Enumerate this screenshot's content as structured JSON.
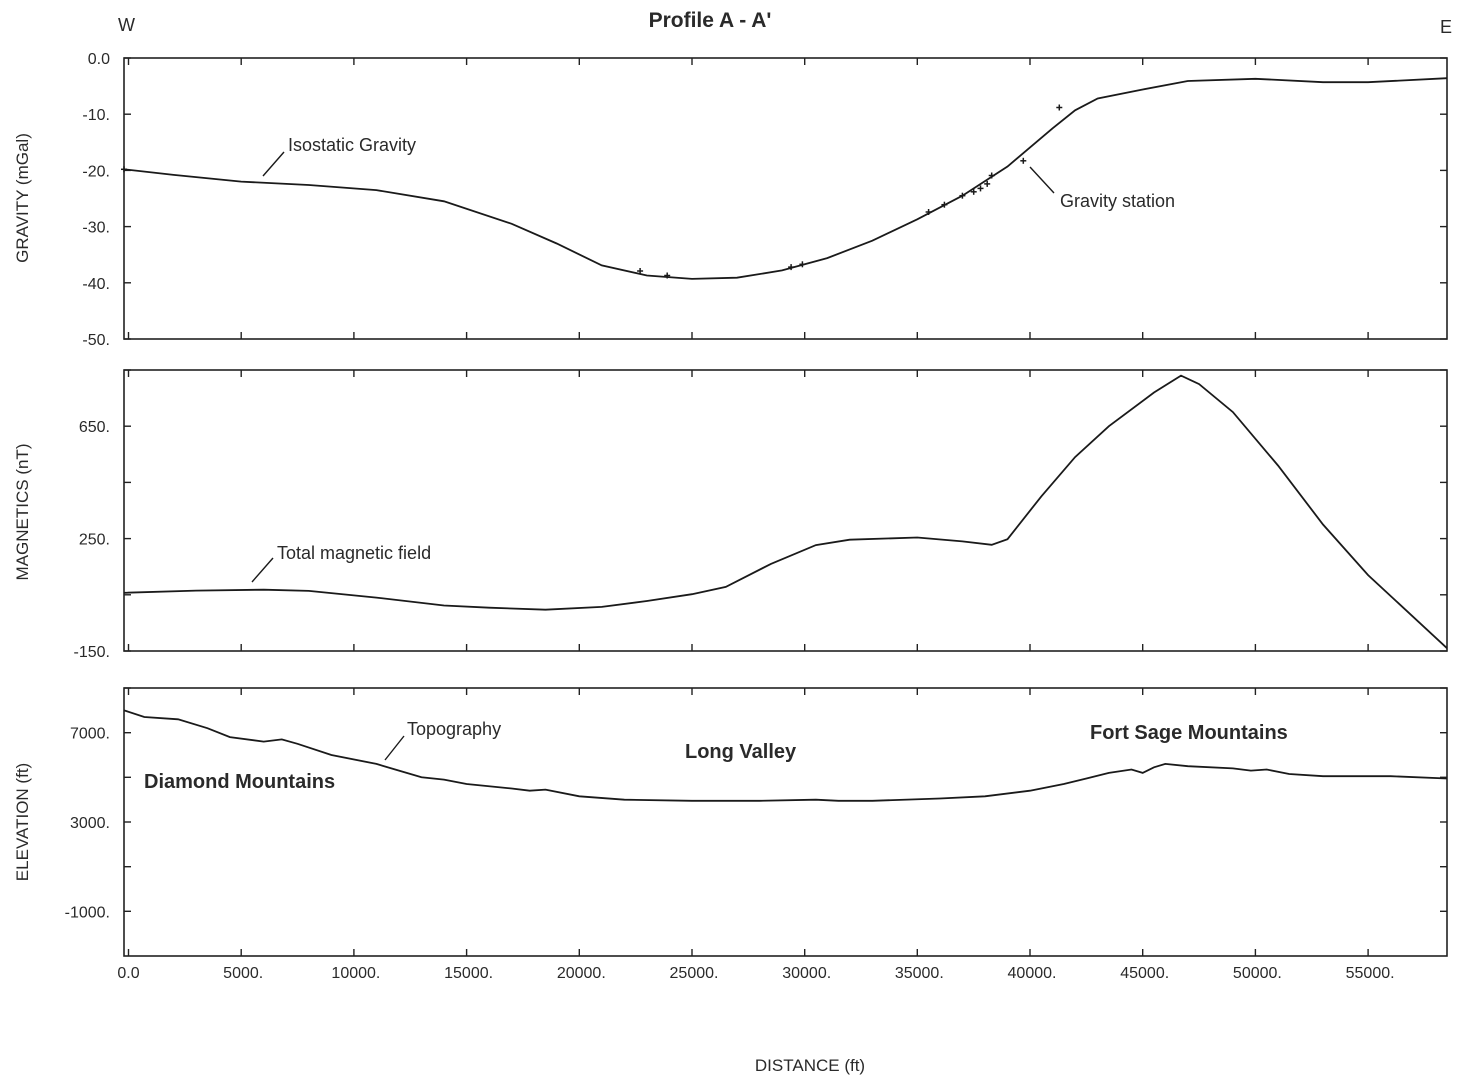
{
  "chart_data": [
    {
      "type": "line",
      "id": "gravity",
      "title": "Profile A - A'",
      "direction_left": "W",
      "direction_right": "E",
      "ylabel": "GRAVITY (mGal)",
      "ylim": [
        -50,
        0
      ],
      "yticks": [
        0,
        -10,
        -20,
        -30,
        -40,
        -50
      ],
      "ytick_labels": [
        "0.0",
        "-10.",
        "-20.",
        "-30.",
        "-40.",
        "-50."
      ],
      "xlim": [
        -200,
        58500
      ],
      "series": [
        {
          "name": "Isostatic Gravity",
          "x": [
            -200,
            2000,
            5000,
            8000,
            11000,
            14000,
            17000,
            19000,
            21000,
            23000,
            25000,
            27000,
            29000,
            31000,
            33000,
            35000,
            37000,
            39000,
            41000,
            42000,
            43000,
            45000,
            47000,
            50000,
            53000,
            55000,
            58500
          ],
          "y": [
            -19.8,
            -20.8,
            -22,
            -22.6,
            -23.5,
            -25.5,
            -29.5,
            -33,
            -36.9,
            -38.7,
            -39.3,
            -39.1,
            -37.8,
            -35.6,
            -32.5,
            -28.7,
            -24.5,
            -19.3,
            -12.5,
            -9.3,
            -7.2,
            -5.6,
            -4.1,
            -3.7,
            -4.3,
            -4.3,
            -3.6
          ]
        }
      ],
      "stations": {
        "name": "Gravity station",
        "x": [
          -200,
          22700,
          23900,
          29400,
          29900,
          35500,
          36200,
          37000,
          37500,
          37800,
          38100,
          38300,
          39700,
          41300
        ],
        "y": [
          -19.8,
          -37.9,
          -38.7,
          -37.2,
          -36.7,
          -27.4,
          -26.1,
          -24.5,
          -23.8,
          -23.2,
          -22.4,
          -20.9,
          -18.3,
          -8.8
        ]
      },
      "annotations": [
        "Isostatic Gravity",
        "Gravity station"
      ]
    },
    {
      "type": "line",
      "id": "magnetics",
      "ylabel": "MAGNETICS (nT)",
      "ylim": [
        -150,
        850
      ],
      "yticks": [
        850,
        650,
        450,
        250,
        50,
        -150
      ],
      "ytick_labels": [
        "",
        "650.",
        "",
        "250.",
        "",
        "-150."
      ],
      "xlim": [
        -200,
        58500
      ],
      "series": [
        {
          "name": "Total magnetic field",
          "x": [
            -200,
            3000,
            6000,
            8000,
            11000,
            14000,
            16000,
            18500,
            21000,
            23000,
            25000,
            26500,
            28500,
            30500,
            32000,
            35000,
            37000,
            38300,
            39000,
            40500,
            42000,
            43500,
            45500,
            46700,
            47500,
            49000,
            51000,
            53000,
            55000,
            58500
          ],
          "y": [
            57,
            65,
            68,
            64,
            40,
            12,
            4,
            -3,
            7,
            28,
            52,
            78,
            160,
            227,
            246,
            254,
            240,
            228,
            248,
            400,
            540,
            650,
            770,
            830,
            800,
            700,
            510,
            300,
            120,
            -140
          ]
        }
      ],
      "annotations": [
        "Total magnetic field"
      ]
    },
    {
      "type": "line",
      "id": "elevation",
      "ylabel": "ELEVATION (ft)",
      "ylim": [
        -3000,
        9000
      ],
      "yticks": [
        9000,
        7000,
        5000,
        3000,
        1000,
        -1000
      ],
      "ytick_labels": [
        "",
        "7000.",
        "",
        "3000.",
        "",
        "-1000."
      ],
      "xlabel": "DISTANCE (ft)",
      "xlim": [
        -200,
        58500
      ],
      "xticks": [
        0,
        5000,
        10000,
        15000,
        20000,
        25000,
        30000,
        35000,
        40000,
        45000,
        50000,
        55000
      ],
      "xtick_labels": [
        "0.0",
        "5000.",
        "10000.",
        "15000.",
        "20000.",
        "25000.",
        "30000.",
        "35000.",
        "40000.",
        "45000.",
        "50000.",
        "55000."
      ],
      "series": [
        {
          "name": "Topography",
          "x": [
            -200,
            700,
            2200,
            3500,
            4500,
            6000,
            6800,
            7500,
            9000,
            11000,
            12000,
            13000,
            14000,
            15000,
            17000,
            17800,
            18500,
            20000,
            22000,
            25000,
            28000,
            30500,
            31500,
            33000,
            36000,
            38000,
            40000,
            41500,
            42500,
            43500,
            44500,
            45000,
            45500,
            46000,
            47000,
            49000,
            49800,
            50500,
            51500,
            53000,
            56000,
            58500
          ],
          "y": [
            8000,
            7700,
            7600,
            7200,
            6800,
            6600,
            6700,
            6500,
            6000,
            5600,
            5300,
            5000,
            4900,
            4700,
            4500,
            4400,
            4450,
            4150,
            4000,
            3950,
            3950,
            4000,
            3950,
            3950,
            4050,
            4150,
            4400,
            4700,
            4950,
            5200,
            5350,
            5200,
            5450,
            5600,
            5500,
            5400,
            5300,
            5350,
            5150,
            5050,
            5050,
            4950
          ]
        }
      ],
      "annotations": [
        "Topography",
        "Diamond Mountains",
        "Long Valley",
        "Fort Sage Mountains"
      ]
    }
  ]
}
